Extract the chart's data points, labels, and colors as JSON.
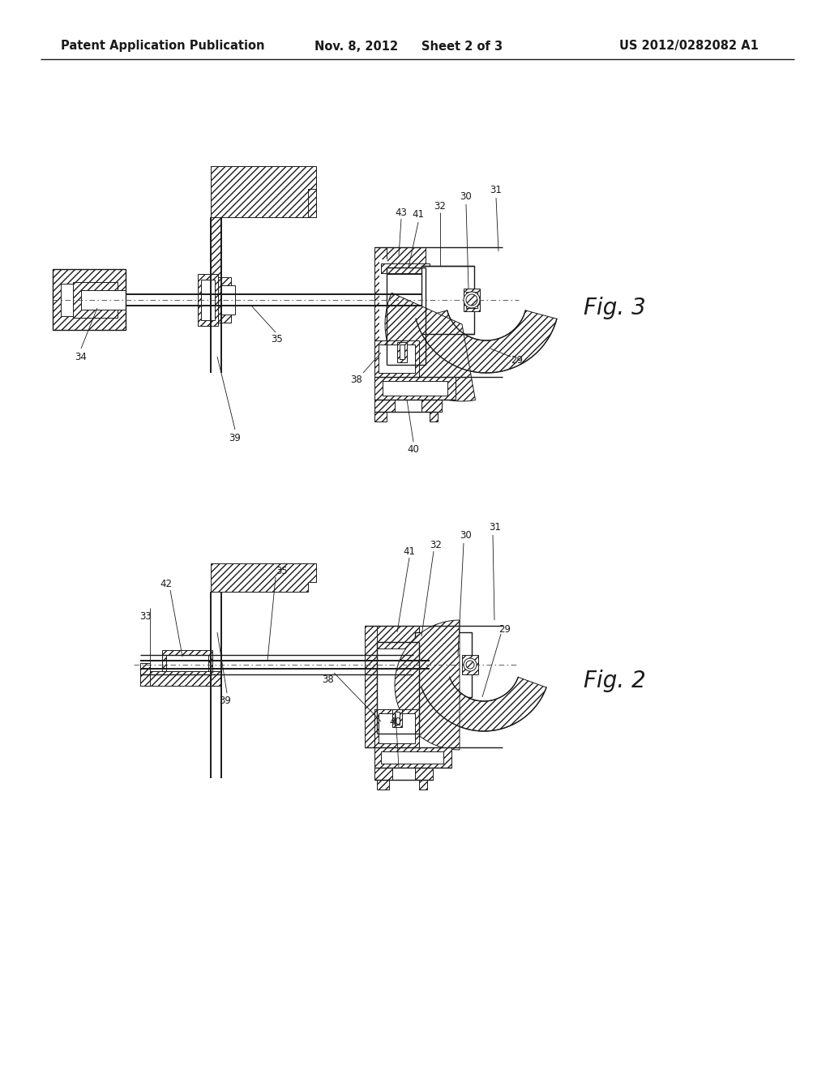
{
  "background_color": "#ffffff",
  "header_text": "Patent Application Publication",
  "header_date": "Nov. 8, 2012",
  "header_sheet": "Sheet 2 of 3",
  "header_patent": "US 2012/0282082 A1",
  "fig3_label": "Fig. 3",
  "fig2_label": "Fig. 2",
  "header_font_size": 10.5,
  "fig_label_font_size": 20,
  "line_color": "#1a1a1a",
  "hatch_color": "#1a1a1a"
}
